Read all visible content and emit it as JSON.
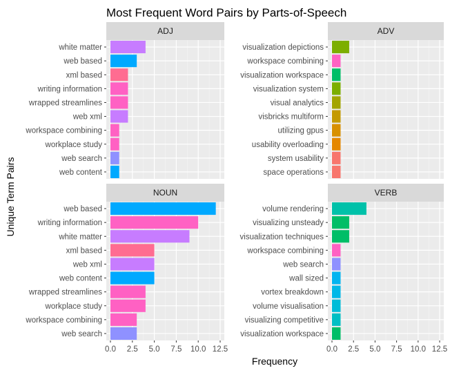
{
  "figure": {
    "title": "Most Frequent Word Pairs by Parts-of-Speech",
    "xlabel": "Frequency",
    "ylabel": "Unique Term Pairs"
  },
  "chart_data": {
    "type": "bar",
    "orientation": "horizontal",
    "title": "Most Frequent Word Pairs by Parts-of-Speech",
    "xlabel": "Frequency",
    "ylabel": "Unique Term Pairs",
    "xlim": [
      0,
      12.5
    ],
    "xticks": [
      "0.0",
      "2.5",
      "5.0",
      "7.5",
      "10.0",
      "12.5"
    ],
    "grid": true,
    "legend": "none",
    "panels": [
      {
        "name": "ADJ",
        "bars": [
          {
            "label": "white matter",
            "value": 4,
            "color": "#C77CFF"
          },
          {
            "label": "web based",
            "value": 3,
            "color": "#00A9FF"
          },
          {
            "label": "xml based",
            "value": 2,
            "color": "#FF6C91"
          },
          {
            "label": "writing information",
            "value": 2,
            "color": "#FF61C3"
          },
          {
            "label": "wrapped streamlines",
            "value": 2,
            "color": "#FF61C3"
          },
          {
            "label": "web xml",
            "value": 2,
            "color": "#C77CFF"
          },
          {
            "label": "workspace combining",
            "value": 1,
            "color": "#FF61C3"
          },
          {
            "label": "workplace study",
            "value": 1,
            "color": "#FF61C3"
          },
          {
            "label": "web search",
            "value": 1,
            "color": "#8F91FF"
          },
          {
            "label": "web content",
            "value": 1,
            "color": "#00A9FF"
          }
        ]
      },
      {
        "name": "ADV",
        "bars": [
          {
            "label": "visualization depictions",
            "value": 2,
            "color": "#7CAE00"
          },
          {
            "label": "workspace combining",
            "value": 1,
            "color": "#FF61C3"
          },
          {
            "label": "visualization workspace",
            "value": 1,
            "color": "#00BE67"
          },
          {
            "label": "visualization system",
            "value": 1,
            "color": "#7CAE00"
          },
          {
            "label": "visual analytics",
            "value": 1,
            "color": "#A3A500"
          },
          {
            "label": "visbricks multiform",
            "value": 1,
            "color": "#C49A00"
          },
          {
            "label": "utilizing gpus",
            "value": 1,
            "color": "#D89000"
          },
          {
            "label": "usability overloading",
            "value": 1,
            "color": "#E58700"
          },
          {
            "label": "system usability",
            "value": 1,
            "color": "#F8766D"
          },
          {
            "label": "space operations",
            "value": 1,
            "color": "#F8766D"
          }
        ]
      },
      {
        "name": "NOUN",
        "bars": [
          {
            "label": "web based",
            "value": 12,
            "color": "#00A9FF"
          },
          {
            "label": "writing information",
            "value": 10,
            "color": "#FF61C3"
          },
          {
            "label": "white matter",
            "value": 9,
            "color": "#C77CFF"
          },
          {
            "label": "xml based",
            "value": 5,
            "color": "#FF6C91"
          },
          {
            "label": "web xml",
            "value": 5,
            "color": "#C77CFF"
          },
          {
            "label": "web content",
            "value": 5,
            "color": "#00A9FF"
          },
          {
            "label": "wrapped streamlines",
            "value": 4,
            "color": "#FF61C3"
          },
          {
            "label": "workplace study",
            "value": 4,
            "color": "#FF61C3"
          },
          {
            "label": "workspace combining",
            "value": 3,
            "color": "#FF61C3"
          },
          {
            "label": "web search",
            "value": 3,
            "color": "#8F91FF"
          }
        ]
      },
      {
        "name": "VERB",
        "bars": [
          {
            "label": "volume rendering",
            "value": 4,
            "color": "#00C1A9"
          },
          {
            "label": "visualizing unsteady",
            "value": 2,
            "color": "#00BE67"
          },
          {
            "label": "visualization techniques",
            "value": 2,
            "color": "#00BE67"
          },
          {
            "label": "workspace combining",
            "value": 1,
            "color": "#FF61C3"
          },
          {
            "label": "web search",
            "value": 1,
            "color": "#8F91FF"
          },
          {
            "label": "wall sized",
            "value": 1,
            "color": "#00B4F0"
          },
          {
            "label": "vortex breakdown",
            "value": 1,
            "color": "#00B8E7"
          },
          {
            "label": "volume visualisation",
            "value": 1,
            "color": "#00BCD8"
          },
          {
            "label": "visualizing competitive",
            "value": 1,
            "color": "#00BFC4"
          },
          {
            "label": "visualization workspace",
            "value": 1,
            "color": "#00BE67"
          }
        ]
      }
    ]
  }
}
